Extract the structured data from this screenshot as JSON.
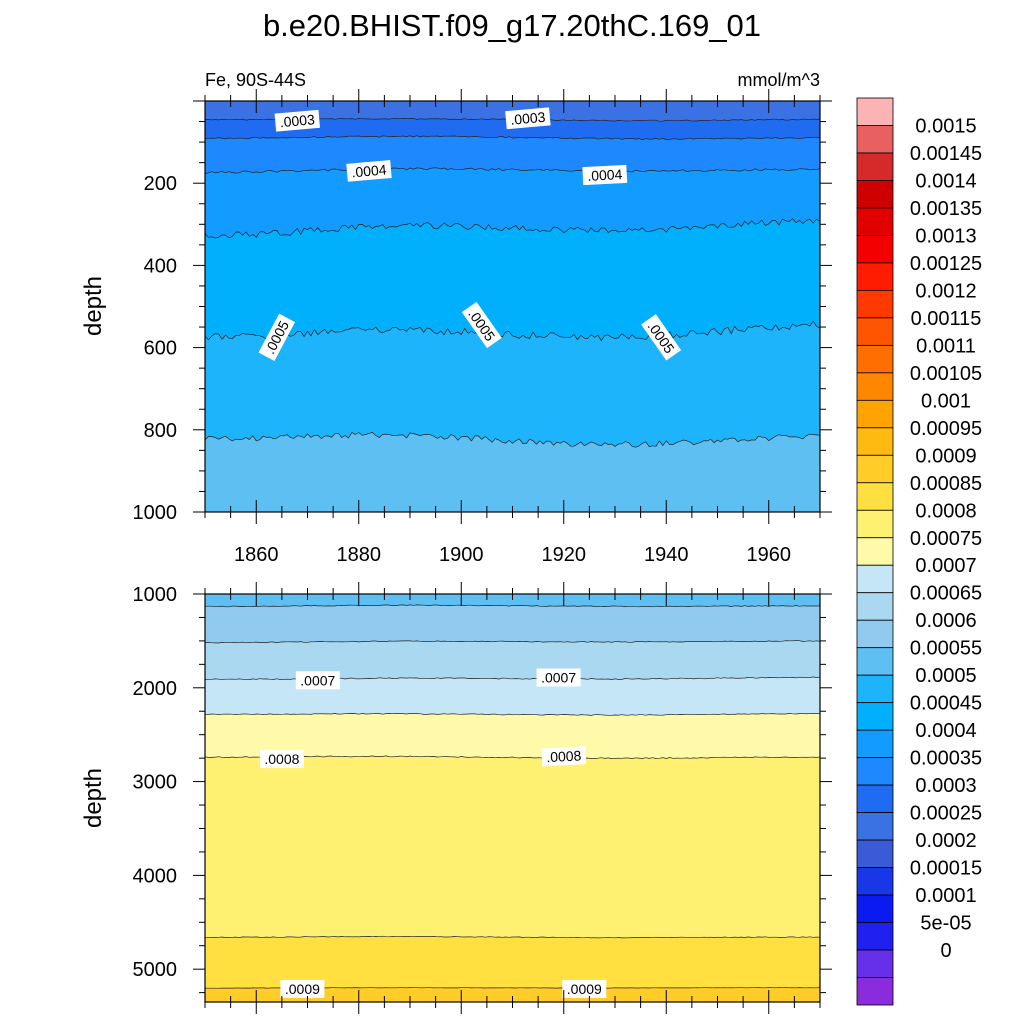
{
  "chart_data": [
    {
      "type": "heatmap",
      "panel": "upper",
      "title": "b.e20.BHIST.f09_g17.20thC.169_01",
      "subtitle_left": "Fe, 90S-44S",
      "subtitle_right": "mmol/m^3",
      "xlabel": "",
      "ylabel": "depth",
      "xlim": [
        1850,
        1970
      ],
      "ylim": [
        1000,
        0
      ],
      "x_ticks": [
        1860,
        1880,
        1900,
        1920,
        1940,
        1960
      ],
      "x_tick_labels": [
        "1860",
        "1880",
        "1900",
        "1920",
        "1940",
        "1960"
      ],
      "y_ticks": [
        200,
        400,
        600,
        800,
        1000
      ],
      "y_tick_labels": [
        "200",
        "400",
        "600",
        "800",
        "1000"
      ],
      "bands": [
        {
          "from": 0,
          "to": 45,
          "value": 0.000275
        },
        {
          "from": 45,
          "to": 90,
          "value": 0.000325
        },
        {
          "from": 90,
          "to": 170,
          "value": 0.000375
        },
        {
          "from": 170,
          "to": 310,
          "value": 0.000425
        },
        {
          "from": 310,
          "to": 560,
          "value": 0.000475
        },
        {
          "from": 560,
          "to": 820,
          "value": 0.000525
        },
        {
          "from": 820,
          "to": 1000,
          "value": 0.000575
        }
      ],
      "contours": [
        {
          "level": 0.0003,
          "depth": 45,
          "noise": 3
        },
        {
          "level": 0.00035,
          "depth": 90,
          "noise": 4
        },
        {
          "level": 0.0004,
          "depth": 170,
          "noise": 6
        },
        {
          "level": 0.00045,
          "depth": 310,
          "noise": 18
        },
        {
          "level": 0.0005,
          "depth": 560,
          "noise": 20
        },
        {
          "level": 0.00055,
          "depth": 820,
          "noise": 16
        }
      ],
      "contour_labels": [
        {
          "text": ".0003",
          "x": 1868,
          "depth": 48,
          "angle": -5
        },
        {
          "text": ".0003",
          "x": 1913,
          "depth": 42,
          "angle": -5
        },
        {
          "text": ".0004",
          "x": 1882,
          "depth": 170,
          "angle": -5
        },
        {
          "text": ".0004",
          "x": 1928,
          "depth": 180,
          "angle": -3
        },
        {
          "text": ".0005",
          "x": 1864,
          "depth": 575,
          "angle": -62
        },
        {
          "text": ".0005",
          "x": 1904,
          "depth": 545,
          "angle": 55
        },
        {
          "text": ".0005",
          "x": 1939,
          "depth": 575,
          "angle": 55
        }
      ]
    },
    {
      "type": "heatmap",
      "panel": "lower",
      "xlabel": "",
      "ylabel": "depth",
      "xlim": [
        1850,
        1970
      ],
      "ylim": [
        1000,
        5350
      ],
      "y_ticks": [
        1000,
        2000,
        3000,
        4000,
        5000
      ],
      "y_tick_labels": [
        "1000",
        "2000",
        "3000",
        "4000",
        "5000"
      ],
      "bands": [
        {
          "from": 1000,
          "to": 1130,
          "value": 0.000575
        },
        {
          "from": 1130,
          "to": 1510,
          "value": 0.000625
        },
        {
          "from": 1510,
          "to": 1900,
          "value": 0.000675
        },
        {
          "from": 1900,
          "to": 2280,
          "value": 0.000725
        },
        {
          "from": 2280,
          "to": 2740,
          "value": 0.000775
        },
        {
          "from": 2740,
          "to": 4660,
          "value": 0.000825
        },
        {
          "from": 4660,
          "to": 5200,
          "value": 0.000875
        },
        {
          "from": 5200,
          "to": 5350,
          "value": 0.000925
        }
      ],
      "contours": [
        {
          "level": 0.0006,
          "depth": 1130,
          "noise": 10
        },
        {
          "level": 0.00065,
          "depth": 1510,
          "noise": 10
        },
        {
          "level": 0.0007,
          "depth": 1900,
          "noise": 12
        },
        {
          "level": 0.00075,
          "depth": 2280,
          "noise": 10
        },
        {
          "level": 0.0008,
          "depth": 2740,
          "noise": 12
        },
        {
          "level": 0.00085,
          "depth": 4660,
          "noise": 8
        },
        {
          "level": 0.0009,
          "depth": 5200,
          "noise": 3
        }
      ],
      "contour_labels": [
        {
          "text": ".0007",
          "x": 1872,
          "depth": 1920,
          "angle": 0
        },
        {
          "text": ".0007",
          "x": 1919,
          "depth": 1890,
          "angle": 0
        },
        {
          "text": ".0008",
          "x": 1865,
          "depth": 2760,
          "angle": 0
        },
        {
          "text": ".0008",
          "x": 1920,
          "depth": 2730,
          "angle": -3
        },
        {
          "text": ".0009",
          "x": 1869,
          "depth": 5210,
          "angle": 0
        },
        {
          "text": ".0009",
          "x": 1924,
          "depth": 5210,
          "angle": 0
        }
      ]
    }
  ],
  "colorbar": {
    "labels": [
      "0.0015",
      "0.00145",
      "0.0014",
      "0.00135",
      "0.0013",
      "0.00125",
      "0.0012",
      "0.00115",
      "0.0011",
      "0.00105",
      "0.001",
      "0.00095",
      "0.0009",
      "0.00085",
      "0.0008",
      "0.00075",
      "0.0007",
      "0.00065",
      "0.0006",
      "0.00055",
      "0.0005",
      "0.00045",
      "0.0004",
      "0.00035",
      "0.0003",
      "0.00025",
      "0.0002",
      "0.00015",
      "0.0001",
      "5e-05",
      "0"
    ],
    "colors": [
      "#fcb3b3",
      "#e86060",
      "#d42a2a",
      "#cf0000",
      "#e00000",
      "#f20000",
      "#ff1c00",
      "#ff3a00",
      "#ff5500",
      "#ff6e00",
      "#ff8700",
      "#ffa300",
      "#ffba12",
      "#ffcc28",
      "#ffe040",
      "#fef070",
      "#fff9aa",
      "#c5e6f6",
      "#aad8f1",
      "#90caee",
      "#5ec0f2",
      "#1eb4fb",
      "#00b0fd",
      "#129cff",
      "#1e88ff",
      "#206cf0",
      "#3a72e4",
      "#3a5ad6",
      "#1838e8",
      "#0a1af0",
      "#2020f0",
      "#6630ea",
      "#8a2bdc"
    ]
  }
}
